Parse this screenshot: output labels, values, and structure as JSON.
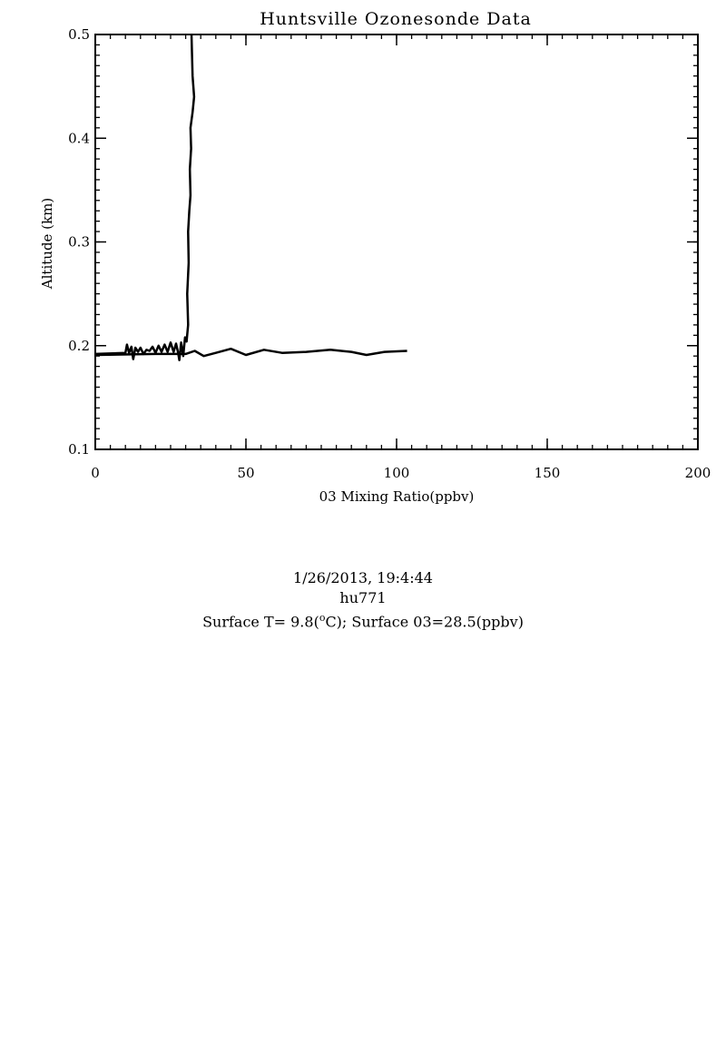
{
  "chart_data": {
    "type": "line",
    "title": "Huntsville Ozonesonde Data",
    "xlabel": "03 Mixing Ratio(ppbv)",
    "ylabel": "Altitude (km)",
    "xlim": [
      0,
      200
    ],
    "ylim": [
      0.1,
      0.5
    ],
    "x_ticks": [
      0,
      50,
      100,
      150,
      200
    ],
    "x_tick_labels": [
      "0",
      "50",
      "100",
      "150",
      "200"
    ],
    "y_ticks": [
      0.1,
      0.2,
      0.3,
      0.4,
      0.5
    ],
    "y_tick_labels": [
      "0.1",
      "0.2",
      "0.3",
      "0.4",
      "0.5"
    ],
    "grid": false,
    "series": [
      {
        "color": "#000000",
        "points": [
          [
            0.0,
            0.192
          ],
          [
            10.0,
            0.193
          ],
          [
            10.5,
            0.201
          ],
          [
            11.2,
            0.193
          ],
          [
            12.0,
            0.199
          ],
          [
            12.6,
            0.187
          ],
          [
            13.3,
            0.198
          ],
          [
            14.2,
            0.194
          ],
          [
            15.0,
            0.198
          ],
          [
            16.0,
            0.192
          ],
          [
            17.0,
            0.196
          ],
          [
            18.0,
            0.195
          ],
          [
            19.0,
            0.199
          ],
          [
            20.0,
            0.193
          ],
          [
            21.0,
            0.2
          ],
          [
            22.0,
            0.194
          ],
          [
            23.0,
            0.201
          ],
          [
            24.0,
            0.194
          ],
          [
            25.0,
            0.203
          ],
          [
            26.0,
            0.194
          ],
          [
            26.8,
            0.202
          ],
          [
            27.5,
            0.193
          ],
          [
            27.9,
            0.186
          ],
          [
            28.5,
            0.203
          ],
          [
            29.2,
            0.19
          ],
          [
            29.8,
            0.208
          ],
          [
            30.3,
            0.204
          ],
          [
            30.8,
            0.22
          ],
          [
            30.5,
            0.25
          ],
          [
            31.0,
            0.28
          ],
          [
            30.8,
            0.31
          ],
          [
            31.2,
            0.33
          ],
          [
            31.6,
            0.345
          ],
          [
            31.4,
            0.37
          ],
          [
            31.8,
            0.39
          ],
          [
            31.6,
            0.41
          ],
          [
            32.3,
            0.425
          ],
          [
            32.8,
            0.44
          ],
          [
            32.3,
            0.46
          ],
          [
            32.1,
            0.48
          ],
          [
            31.9,
            0.505
          ]
        ]
      },
      {
        "color": "#000000",
        "points": [
          [
            0.0,
            0.191
          ],
          [
            20.0,
            0.192
          ],
          [
            30.0,
            0.192
          ],
          [
            33.0,
            0.195
          ],
          [
            36.0,
            0.19
          ],
          [
            40.0,
            0.193
          ],
          [
            45.0,
            0.197
          ],
          [
            50.0,
            0.191
          ],
          [
            56.0,
            0.196
          ],
          [
            62.0,
            0.193
          ],
          [
            70.0,
            0.194
          ],
          [
            78.0,
            0.196
          ],
          [
            85.0,
            0.194
          ],
          [
            90.0,
            0.191
          ],
          [
            96.0,
            0.194
          ],
          [
            103.5,
            0.195
          ]
        ]
      }
    ]
  },
  "info": {
    "datetime": "1/26/2013, 19:4:44",
    "station_id": "hu771",
    "surface_prefix": "Surface T= 9.8(",
    "surface_sup": "o",
    "surface_suffix": "C); Surface 03=28.5(ppbv)"
  }
}
